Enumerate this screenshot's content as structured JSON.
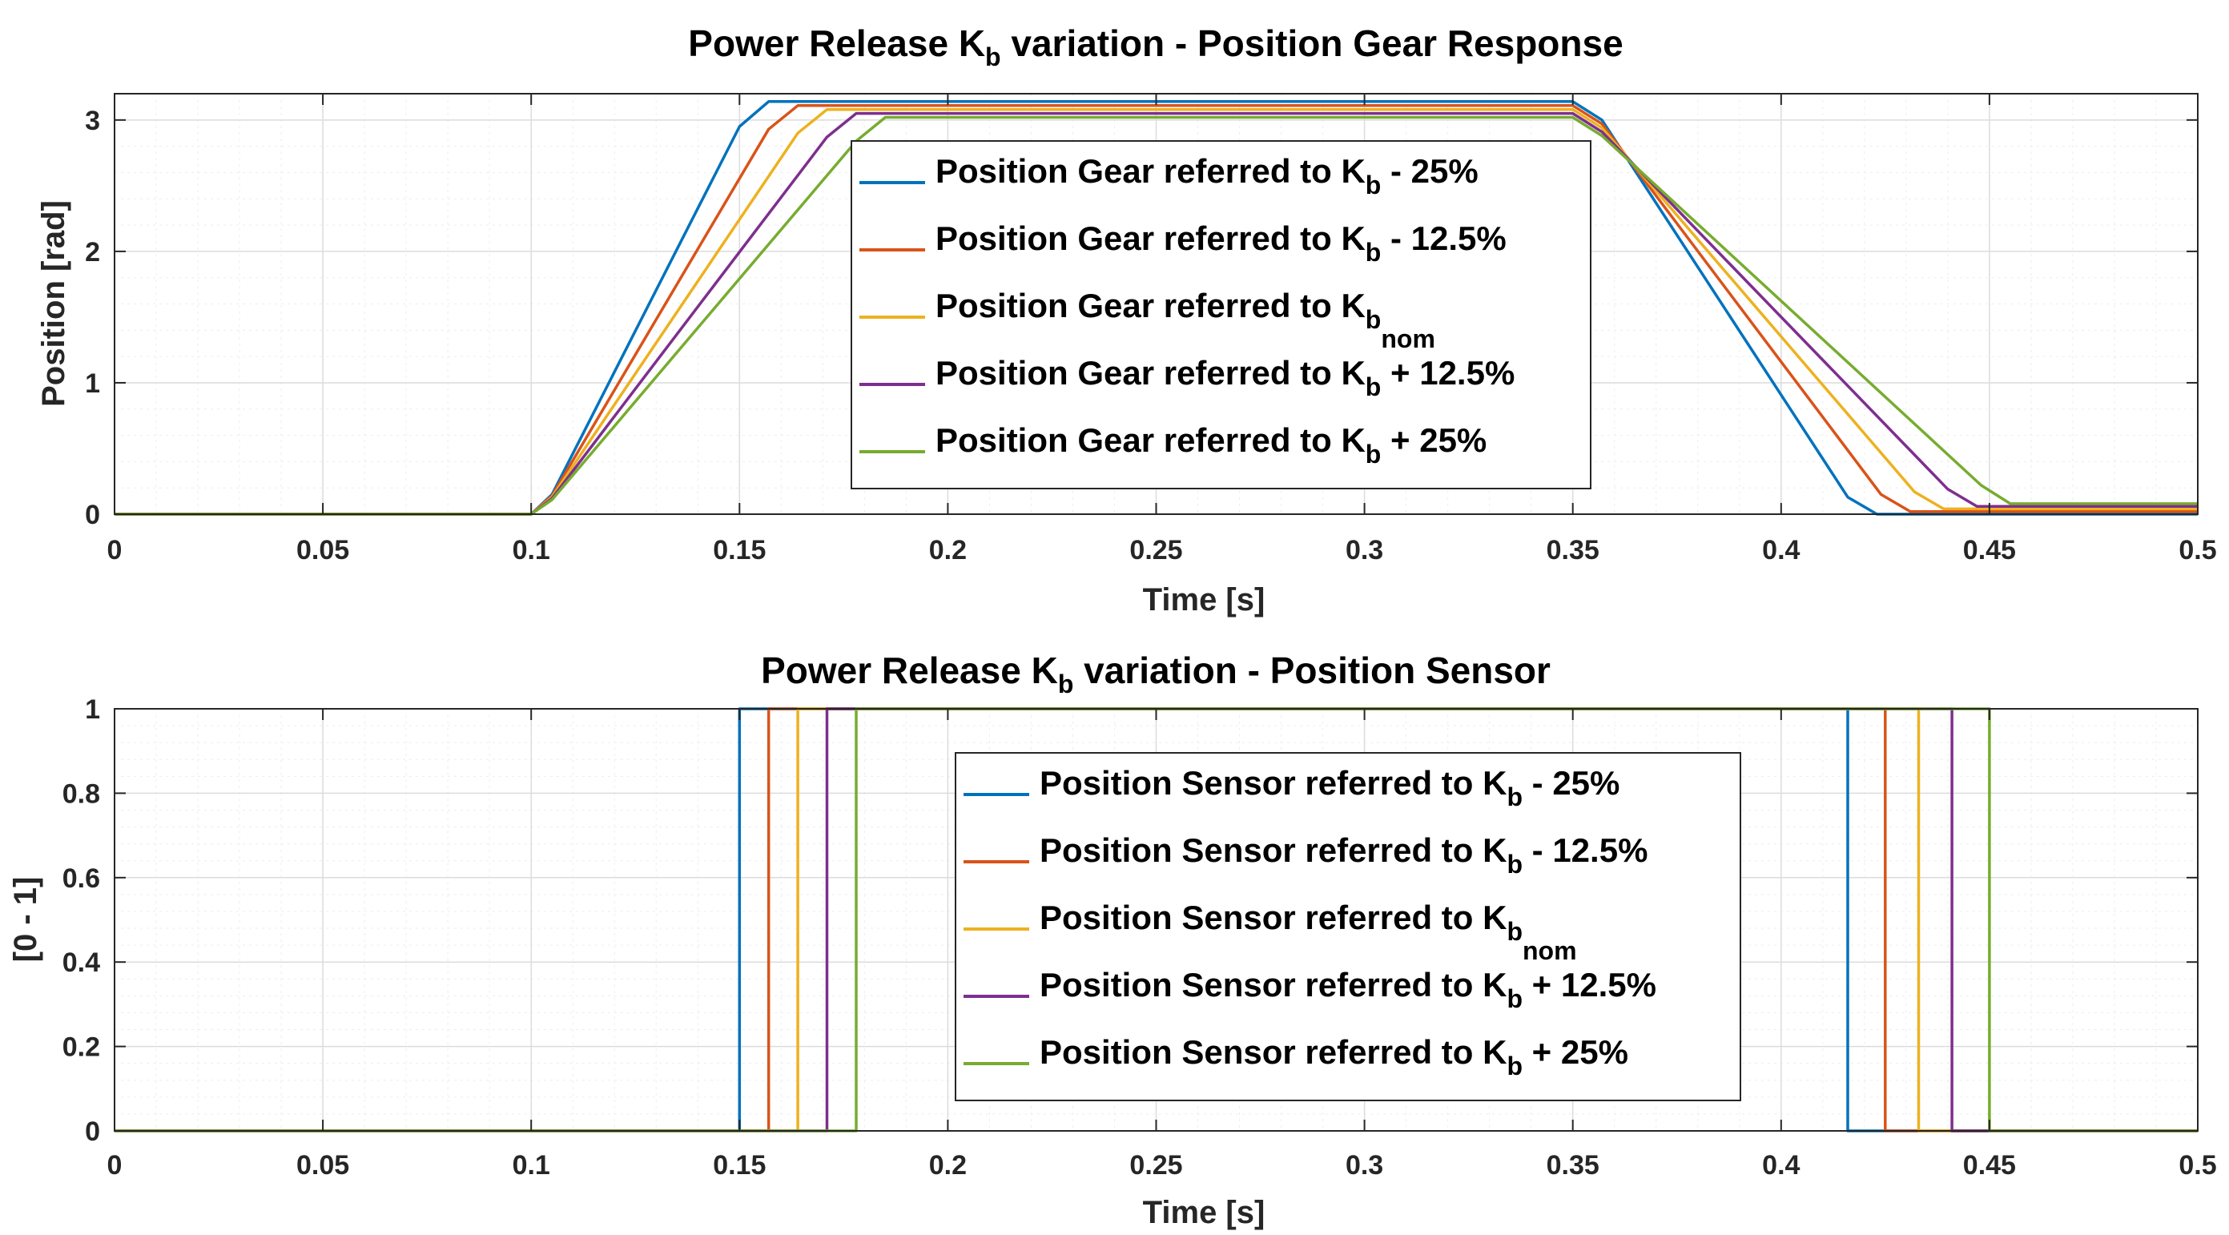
{
  "chart_data": [
    {
      "type": "line",
      "title": "Power Release K",
      "title_sub": "b",
      "title_tail": " variation - Position Gear Response",
      "xlabel": "Time [s]",
      "ylabel": "Position [rad]",
      "xlim": [
        0,
        0.5
      ],
      "ylim": [
        0,
        3.2
      ],
      "xticks": [
        0,
        0.05,
        0.1,
        0.15,
        0.2,
        0.25,
        0.3,
        0.35,
        0.4,
        0.45,
        0.5
      ],
      "xtick_labels": [
        "0",
        "0.05",
        "0.1",
        "0.15",
        "0.2",
        "0.25",
        "0.3",
        "0.35",
        "0.4",
        "0.45",
        "0.5"
      ],
      "yticks": [
        0,
        1,
        2,
        3
      ],
      "ytick_labels": [
        "0",
        "1",
        "2",
        "3"
      ],
      "grid": true,
      "legend_position": "center",
      "series": [
        {
          "name": "Position Gear referred to K",
          "sub": "b",
          "tail": " - 25%",
          "color": "#0072BD",
          "x": [
            0,
            0.1,
            0.105,
            0.15,
            0.157,
            0.35,
            0.357,
            0.416,
            0.423,
            0.5
          ],
          "y": [
            0,
            0,
            0.15,
            2.95,
            3.14,
            3.14,
            3.0,
            0.13,
            0,
            0
          ]
        },
        {
          "name": "Position Gear referred to K",
          "sub": "b",
          "tail": " - 12.5%",
          "color": "#D95319",
          "x": [
            0,
            0.1,
            0.105,
            0.157,
            0.164,
            0.35,
            0.357,
            0.424,
            0.431,
            0.5
          ],
          "y": [
            0,
            0,
            0.14,
            2.93,
            3.11,
            3.11,
            2.97,
            0.15,
            0.02,
            0.02
          ]
        },
        {
          "name": "Position Gear referred to K",
          "sub": "b",
          "tail": "nom",
          "tail_sub": true,
          "color": "#EDB120",
          "x": [
            0,
            0.1,
            0.105,
            0.164,
            0.171,
            0.35,
            0.357,
            0.432,
            0.439,
            0.5
          ],
          "y": [
            0,
            0,
            0.13,
            2.9,
            3.08,
            3.08,
            2.94,
            0.17,
            0.04,
            0.04
          ]
        },
        {
          "name": "Position Gear referred to K",
          "sub": "b",
          "tail": " + 12.5%",
          "color": "#7E2F8E",
          "x": [
            0,
            0.1,
            0.105,
            0.171,
            0.178,
            0.35,
            0.357,
            0.44,
            0.447,
            0.5
          ],
          "y": [
            0,
            0,
            0.12,
            2.87,
            3.05,
            3.05,
            2.91,
            0.19,
            0.06,
            0.06
          ]
        },
        {
          "name": "Position Gear referred to K",
          "sub": "b",
          "tail": " + 25%",
          "color": "#77AC30",
          "x": [
            0,
            0.1,
            0.105,
            0.178,
            0.185,
            0.35,
            0.357,
            0.448,
            0.455,
            0.5
          ],
          "y": [
            0,
            0,
            0.11,
            2.84,
            3.02,
            3.02,
            2.88,
            0.22,
            0.08,
            0.08
          ]
        }
      ]
    },
    {
      "type": "line",
      "title": "Power Release K",
      "title_sub": "b",
      "title_tail": " variation - Position Sensor",
      "xlabel": "Time [s]",
      "ylabel": "[0 - 1]",
      "xlim": [
        0,
        0.5
      ],
      "ylim": [
        0,
        1
      ],
      "xticks": [
        0,
        0.05,
        0.1,
        0.15,
        0.2,
        0.25,
        0.3,
        0.35,
        0.4,
        0.45,
        0.5
      ],
      "xtick_labels": [
        "0",
        "0.05",
        "0.1",
        "0.15",
        "0.2",
        "0.25",
        "0.3",
        "0.35",
        "0.4",
        "0.45",
        "0.5"
      ],
      "yticks": [
        0,
        0.2,
        0.4,
        0.6,
        0.8,
        1
      ],
      "ytick_labels": [
        "0",
        "0.2",
        "0.4",
        "0.6",
        "0.8",
        "1"
      ],
      "grid": true,
      "legend_position": "center",
      "series": [
        {
          "name": "Position Sensor referred to K",
          "sub": "b",
          "tail": " - 25%",
          "color": "#0072BD",
          "x": [
            0,
            0.15,
            0.15,
            0.416,
            0.416,
            0.5
          ],
          "y": [
            0,
            0,
            1,
            1,
            0,
            0
          ]
        },
        {
          "name": "Position Sensor referred to K",
          "sub": "b",
          "tail": " - 12.5%",
          "color": "#D95319",
          "x": [
            0,
            0.157,
            0.157,
            0.425,
            0.425,
            0.5
          ],
          "y": [
            0,
            0,
            1,
            1,
            0,
            0
          ]
        },
        {
          "name": "Position Sensor referred to K",
          "sub": "b",
          "tail": "nom",
          "tail_sub": true,
          "color": "#EDB120",
          "x": [
            0,
            0.164,
            0.164,
            0.433,
            0.433,
            0.5
          ],
          "y": [
            0,
            0,
            1,
            1,
            0,
            0
          ]
        },
        {
          "name": "Position Sensor referred to K",
          "sub": "b",
          "tail": " + 12.5%",
          "color": "#7E2F8E",
          "x": [
            0,
            0.171,
            0.171,
            0.441,
            0.441,
            0.5
          ],
          "y": [
            0,
            0,
            1,
            1,
            0,
            0
          ]
        },
        {
          "name": "Position Sensor referred to K",
          "sub": "b",
          "tail": " + 25%",
          "color": "#77AC30",
          "x": [
            0,
            0.178,
            0.178,
            0.45,
            0.45,
            0.5
          ],
          "y": [
            0,
            0,
            1,
            1,
            0,
            0
          ]
        }
      ]
    }
  ]
}
